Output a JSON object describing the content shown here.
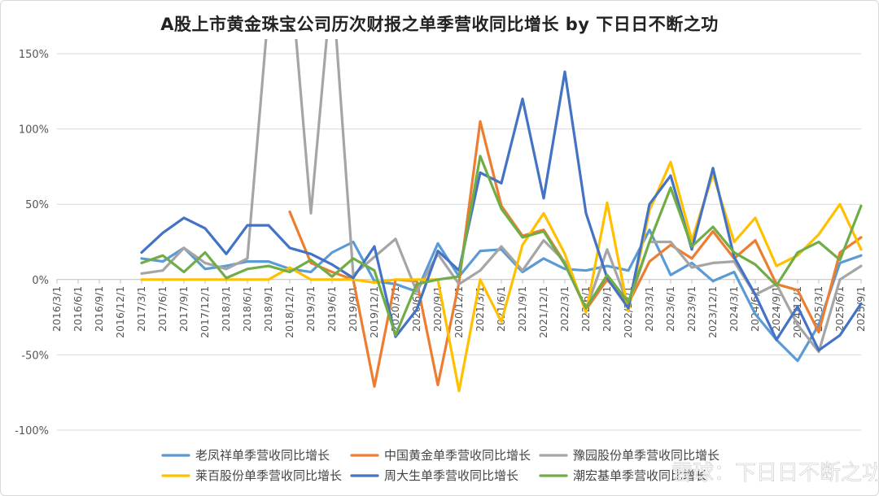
{
  "chart_data": {
    "type": "line",
    "title": "A股上市黄金珠宝公司历次财报之单季营收同比增长 by 下日日不断之功",
    "ylim": [
      -100,
      150
    ],
    "yticks": [
      150,
      100,
      50,
      0,
      -50,
      -100
    ],
    "ytick_labels": [
      "150%",
      "100%",
      "50%",
      "0%",
      "-50%",
      "-100%"
    ],
    "grid": "horizontal",
    "legend_position": "bottom",
    "watermark": "雪球：下日日不断之功",
    "categories": [
      "2016/3/1",
      "2016/6/1",
      "2016/9/1",
      "2016/12/1",
      "2017/3/1",
      "2017/6/1",
      "2017/9/1",
      "2017/12/1",
      "2018/3/1",
      "2018/6/1",
      "2018/9/1",
      "2018/12/1",
      "2019/3/1",
      "2019/6/1",
      "2019/9/1",
      "2019/12/1",
      "2020/3/1",
      "2020/6/1",
      "2020/9/1",
      "2020/12/1",
      "2021/3/1",
      "2021/6/1",
      "2021/9/1",
      "2021/12/1",
      "2022/3/1",
      "2022/6/1",
      "2022/9/1",
      "2022/12/1",
      "2023/3/1",
      "2023/6/1",
      "2023/9/1",
      "2023/12/1",
      "2024/3/1",
      "2024/6/1",
      "2024/9/1",
      "2024/12/1",
      "2025/3/1",
      "2025/6/1",
      "2025/9/1"
    ],
    "series": [
      {
        "name": "老凤祥单季营收同比增长",
        "color": "#5b9bd5",
        "values": [
          null,
          null,
          null,
          null,
          14,
          12,
          21,
          7,
          9,
          12,
          12,
          7,
          5,
          18,
          25,
          -1,
          -3,
          -8,
          24,
          2,
          19,
          20,
          5,
          14,
          7,
          6,
          9,
          6,
          33,
          3,
          11,
          -1,
          5,
          -23,
          -40,
          -54,
          -30,
          11,
          16
        ]
      },
      {
        "name": "中国黄金单季营收同比增长",
        "color": "#ed7d31",
        "values": [
          null,
          null,
          null,
          null,
          null,
          null,
          null,
          null,
          null,
          null,
          null,
          45,
          11,
          5,
          0,
          -71,
          0,
          -1,
          -70,
          -2,
          105,
          49,
          29,
          33,
          11,
          -20,
          0,
          -16,
          12,
          23,
          14,
          32,
          14,
          26,
          -3,
          -7,
          -35,
          18,
          28
        ]
      },
      {
        "name": "豫园股份单季营收同比增长",
        "color": "#a5a5a5",
        "values": [
          null,
          null,
          null,
          null,
          4,
          6,
          21,
          11,
          7,
          14,
          180,
          210,
          44,
          200,
          3,
          15,
          27,
          -8,
          17,
          -3,
          6,
          22,
          6,
          26,
          12,
          -20,
          20,
          -17,
          25,
          25,
          8,
          11,
          12,
          -10,
          -3,
          -30,
          -48,
          0,
          9
        ]
      },
      {
        "name": "莱百股份单季营收同比增长",
        "color": "#ffc000",
        "values": [
          null,
          null,
          null,
          null,
          0,
          0,
          0,
          0,
          0,
          0,
          0,
          8,
          0,
          0,
          0,
          -2,
          0,
          0,
          0,
          -74,
          0,
          -28,
          23,
          44,
          17,
          -22,
          51,
          -21,
          46,
          78,
          26,
          70,
          25,
          41,
          9,
          16,
          30,
          50,
          20
        ]
      },
      {
        "name": "周大生单季营收同比增长",
        "color": "#4472c4",
        "values": [
          null,
          null,
          null,
          null,
          18,
          31,
          41,
          34,
          17,
          36,
          36,
          21,
          17,
          10,
          1,
          22,
          -38,
          -20,
          19,
          6,
          71,
          64,
          120,
          54,
          138,
          44,
          1,
          -19,
          50,
          69,
          20,
          74,
          15,
          -10,
          -40,
          -18,
          -47,
          -37,
          -16
        ]
      },
      {
        "name": "潮宏基单季营收同比增长",
        "color": "#70ad47",
        "values": [
          null,
          null,
          null,
          null,
          11,
          16,
          5,
          18,
          1,
          7,
          9,
          5,
          13,
          2,
          14,
          6,
          -37,
          -3,
          0,
          2,
          82,
          47,
          28,
          32,
          10,
          -19,
          3,
          -15,
          25,
          61,
          22,
          35,
          18,
          10,
          -4,
          18,
          25,
          13,
          49
        ]
      }
    ]
  }
}
